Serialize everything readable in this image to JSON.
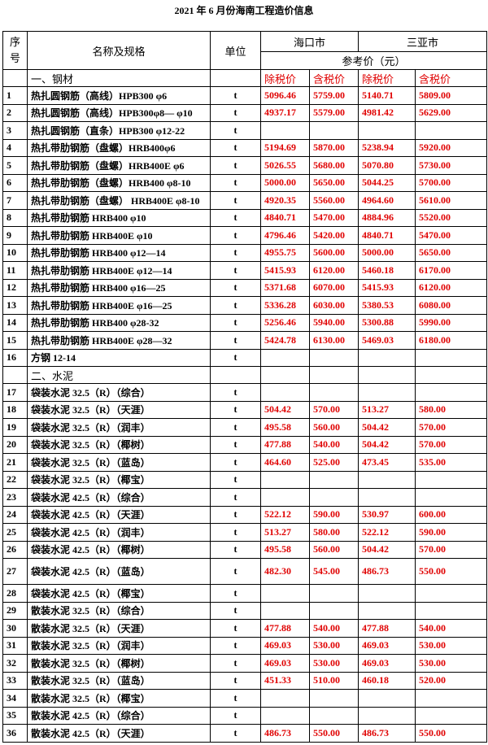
{
  "title": "2021 年 6 月份海南工程造价信息",
  "header": {
    "no": "序号",
    "name": "名称及规格",
    "unit": "单位",
    "cities": [
      "海口市",
      "三亚市"
    ],
    "ref_price": "参考价（元）",
    "price_headers": [
      "除税价",
      "含税价",
      "除税价",
      "含税价"
    ]
  },
  "rows": [
    {
      "section": "一、钢材"
    },
    {
      "no": "1",
      "name": "热扎圆钢筋（高线）HPB300 φ6",
      "unit": "t",
      "prices": [
        "5096.46",
        "5759.00",
        "5140.71",
        "5809.00"
      ]
    },
    {
      "no": "2",
      "name": "热扎圆钢筋（高线）HPB300φ8— φ10",
      "unit": "t",
      "prices": [
        "4937.17",
        "5579.00",
        "4981.42",
        "5629.00"
      ]
    },
    {
      "no": "3",
      "name": "热扎圆钢筋（直条）HPB300 φ12-22",
      "unit": "t"
    },
    {
      "no": "4",
      "name": "热扎带肋钢筋（盘螺）HRB400φ6",
      "unit": "t",
      "prices": [
        "5194.69",
        "5870.00",
        "5238.94",
        "5920.00"
      ]
    },
    {
      "no": "5",
      "name": "热扎带肋钢筋（盘螺）HRB400E φ6",
      "unit": "t",
      "prices": [
        "5026.55",
        "5680.00",
        "5070.80",
        "5730.00"
      ]
    },
    {
      "no": "6",
      "name": "热扎带肋钢筋（盘螺）HRB400 φ8-10",
      "unit": "t",
      "prices": [
        "5000.00",
        "5650.00",
        "5044.25",
        "5700.00"
      ]
    },
    {
      "no": "7",
      "name": "热扎带肋钢筋（盘螺） HRB400E φ8-10",
      "unit": "t",
      "prices": [
        "4920.35",
        "5560.00",
        "4964.60",
        "5610.00"
      ]
    },
    {
      "no": "8",
      "name": "热扎带肋钢筋 HRB400 φ10",
      "unit": "t",
      "prices": [
        "4840.71",
        "5470.00",
        "4884.96",
        "5520.00"
      ]
    },
    {
      "no": "9",
      "name": "热扎带肋钢筋 HRB400E φ10",
      "unit": "t",
      "prices": [
        "4796.46",
        "5420.00",
        "4840.71",
        "5470.00"
      ]
    },
    {
      "no": "10",
      "name": "热扎带肋钢筋 HRB400 φ12—14",
      "unit": "t",
      "prices": [
        "4955.75",
        "5600.00",
        "5000.00",
        "5650.00"
      ]
    },
    {
      "no": "11",
      "name": "热扎带肋钢筋 HRB400E φ12—14",
      "unit": "t",
      "prices": [
        "5415.93",
        "6120.00",
        "5460.18",
        "6170.00"
      ]
    },
    {
      "no": "12",
      "name": "热扎带肋钢筋 HRB400 φ16—25",
      "unit": "t",
      "prices": [
        "5371.68",
        "6070.00",
        "5415.93",
        "6120.00"
      ]
    },
    {
      "no": "13",
      "name": "热扎带肋钢筋 HRB400E φ16—25",
      "unit": "t",
      "prices": [
        "5336.28",
        "6030.00",
        "5380.53",
        "6080.00"
      ]
    },
    {
      "no": "14",
      "name": "热扎带肋钢筋 HRB400 φ28-32",
      "unit": "t",
      "prices": [
        "5256.46",
        "5940.00",
        "5300.88",
        "5990.00"
      ]
    },
    {
      "no": "15",
      "name": "热扎带肋钢筋 HRB400E φ28—32",
      "unit": "t",
      "prices": [
        "5424.78",
        "6130.00",
        "5469.03",
        "6180.00"
      ]
    },
    {
      "no": "16",
      "name": "方钢 12-14",
      "unit": "t"
    },
    {
      "section": "二、水泥"
    },
    {
      "no": "17",
      "name": "袋装水泥 32.5（R）（综合）",
      "unit": "t"
    },
    {
      "no": "18",
      "name": "袋装水泥 32.5（R）（天涯）",
      "unit": "t",
      "prices": [
        "504.42",
        "570.00",
        "513.27",
        "580.00"
      ]
    },
    {
      "no": "19",
      "name": "袋装水泥 32.5（R）（润丰）",
      "unit": "t",
      "prices": [
        "495.58",
        "560.00",
        "504.42",
        "570.00"
      ]
    },
    {
      "no": "20",
      "name": "袋装水泥 32.5（R）（椰树）",
      "unit": "t",
      "prices": [
        "477.88",
        "540.00",
        "504.42",
        "570.00"
      ]
    },
    {
      "no": "21",
      "name": "袋装水泥 32.5（R）（蓝岛）",
      "unit": "t",
      "prices": [
        "464.60",
        "525.00",
        "473.45",
        "535.00"
      ]
    },
    {
      "no": "22",
      "name": "袋装水泥 32.5（R）（椰宝）",
      "unit": "t"
    },
    {
      "no": "23",
      "name": "袋装水泥 42.5（R）（综合）",
      "unit": "t"
    },
    {
      "no": "24",
      "name": "袋装水泥 42.5（R）（天涯）",
      "unit": "t",
      "prices": [
        "522.12",
        "590.00",
        "530.97",
        "600.00"
      ]
    },
    {
      "no": "25",
      "name": "袋装水泥 42.5（R）（润丰）",
      "unit": "t",
      "prices": [
        "513.27",
        "580.00",
        "522.12",
        "590.00"
      ]
    },
    {
      "no": "26",
      "name": "袋装水泥 42.5（R）（椰树）",
      "unit": "t",
      "prices": [
        "495.58",
        "560.00",
        "504.42",
        "570.00"
      ]
    },
    {
      "no": "27",
      "name": "袋装水泥 42.5（R）（蓝岛）",
      "unit": "t",
      "prices": [
        "482.30",
        "545.00",
        "486.73",
        "550.00"
      ]
    },
    {
      "no": "28",
      "name": "袋装水泥 42.5（R）（椰宝）",
      "unit": "t"
    },
    {
      "no": "29",
      "name": "散装水泥 32.5（R）（综合）",
      "unit": "t"
    },
    {
      "no": "30",
      "name": "散装水泥 32.5（R）（天涯）",
      "unit": "t",
      "prices": [
        "477.88",
        "540.00",
        "477.88",
        "540.00"
      ]
    },
    {
      "no": "31",
      "name": "散装水泥 32.5（R）（润丰）",
      "unit": "t",
      "prices": [
        "469.03",
        "530.00",
        "469.03",
        "530.00"
      ]
    },
    {
      "no": "32",
      "name": "散装水泥 32.5（R）（椰树）",
      "unit": "t",
      "prices": [
        "469.03",
        "530.00",
        "469.03",
        "530.00"
      ]
    },
    {
      "no": "33",
      "name": "散装水泥 32.5（R）（蓝岛）",
      "unit": "t",
      "prices": [
        "451.33",
        "510.00",
        "460.18",
        "520.00"
      ]
    },
    {
      "no": "34",
      "name": "散装水泥 32.5（R）（椰宝）",
      "unit": "t"
    },
    {
      "no": "35",
      "name": "散装水泥 42.5（R）（综合）",
      "unit": "t"
    },
    {
      "no": "36",
      "name": "散装水泥 42.5（R）（天涯）",
      "unit": "t",
      "prices": [
        "486.73",
        "550.00",
        "486.73",
        "550.00"
      ]
    }
  ]
}
